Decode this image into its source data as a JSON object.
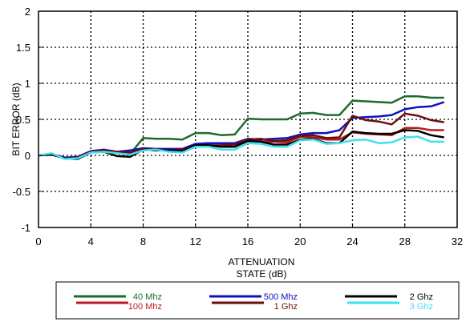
{
  "chart_data": {
    "type": "line",
    "xlabel_line1": "ATTENUATION",
    "xlabel_line2": "STATE (dB)",
    "ylabel": "BIT ERROR (dB)",
    "xlim": [
      0,
      32
    ],
    "ylim": [
      -1,
      2
    ],
    "x_ticks": [
      0,
      4,
      8,
      12,
      16,
      20,
      24,
      28,
      32
    ],
    "y_ticks": [
      -1,
      -0.5,
      0,
      0.5,
      1,
      1.5,
      2
    ],
    "y_tick_labels": [
      "-1",
      "-0.5",
      "0",
      "0.5",
      "1",
      "1.5",
      "2"
    ],
    "grid": true,
    "legend_position": "bottom",
    "x": [
      0,
      1,
      2,
      3,
      4,
      5,
      6,
      7,
      8,
      9,
      10,
      11,
      12,
      13,
      14,
      15,
      16,
      17,
      18,
      19,
      20,
      21,
      22,
      23,
      24,
      25,
      26,
      27,
      28,
      29,
      30,
      31
    ],
    "series": [
      {
        "name": "40 Mhz",
        "color": "#1f6b2e",
        "values": [
          0,
          0.02,
          -0.04,
          -0.02,
          0.05,
          0.07,
          0.04,
          0.02,
          0.24,
          0.23,
          0.23,
          0.22,
          0.31,
          0.31,
          0.28,
          0.29,
          0.51,
          0.5,
          0.5,
          0.5,
          0.58,
          0.59,
          0.56,
          0.56,
          0.76,
          0.75,
          0.74,
          0.73,
          0.82,
          0.82,
          0.8,
          0.8
        ]
      },
      {
        "name": "100 Mhz",
        "color": "#b81c1c",
        "values": [
          0,
          0.01,
          -0.04,
          -0.04,
          0.04,
          0.06,
          0.03,
          0.02,
          0.08,
          0.07,
          0.07,
          0.07,
          0.15,
          0.14,
          0.12,
          0.12,
          0.21,
          0.19,
          0.19,
          0.18,
          0.26,
          0.25,
          0.22,
          0.22,
          0.32,
          0.3,
          0.29,
          0.28,
          0.38,
          0.38,
          0.35,
          0.35
        ]
      },
      {
        "name": "500 Mhz",
        "color": "#1010c0",
        "values": [
          0,
          0.02,
          -0.03,
          -0.02,
          0.06,
          0.08,
          0.05,
          0.07,
          0.1,
          0.09,
          0.09,
          0.09,
          0.16,
          0.17,
          0.17,
          0.17,
          0.23,
          0.22,
          0.23,
          0.24,
          0.29,
          0.31,
          0.31,
          0.35,
          0.52,
          0.53,
          0.54,
          0.56,
          0.64,
          0.67,
          0.68,
          0.74
        ]
      },
      {
        "name": "1 Ghz",
        "color": "#6a0e0e",
        "values": [
          0,
          0.02,
          -0.04,
          -0.03,
          0.05,
          0.07,
          0.05,
          0.04,
          0.09,
          0.08,
          0.07,
          0.08,
          0.14,
          0.14,
          0.14,
          0.15,
          0.22,
          0.23,
          0.2,
          0.21,
          0.27,
          0.28,
          0.24,
          0.25,
          0.55,
          0.49,
          0.47,
          0.43,
          0.58,
          0.55,
          0.49,
          0.46
        ]
      },
      {
        "name": "2 Ghz",
        "color": "#000000",
        "values": [
          0,
          0.01,
          -0.04,
          -0.05,
          0.04,
          0.05,
          -0.01,
          -0.02,
          0.08,
          0.07,
          0.07,
          0.06,
          0.14,
          0.14,
          0.12,
          0.12,
          0.2,
          0.19,
          0.15,
          0.15,
          0.22,
          0.23,
          0.17,
          0.17,
          0.33,
          0.31,
          0.3,
          0.3,
          0.35,
          0.34,
          0.28,
          0.25
        ]
      },
      {
        "name": "3 Ghz",
        "color": "#40e0f0",
        "values": [
          0,
          0.03,
          -0.05,
          -0.04,
          0.04,
          0.05,
          0.03,
          0.01,
          0.07,
          0.08,
          0.05,
          0.04,
          0.12,
          0.12,
          0.08,
          0.08,
          0.17,
          0.16,
          0.12,
          0.12,
          0.21,
          0.22,
          0.16,
          0.17,
          0.21,
          0.22,
          0.17,
          0.18,
          0.25,
          0.26,
          0.19,
          0.19
        ]
      }
    ]
  }
}
